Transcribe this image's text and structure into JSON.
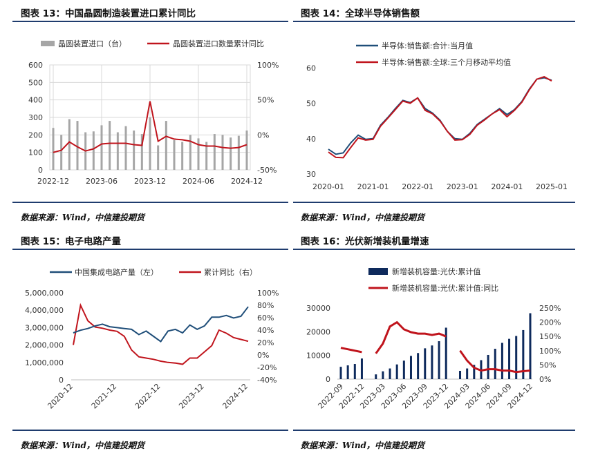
{
  "panels": [
    {
      "title": "图表 13：中国晶圆制造装置进口累计同比",
      "source": "数据来源：Wind，中信建投期货"
    },
    {
      "title": "图表 14：全球半导体销售额",
      "source": "数据来源：Wind，中信建投期货"
    },
    {
      "title": "图表 15：电子电路产量",
      "source": "数据来源：Wind，中信建投期货"
    },
    {
      "title": "图表 16：光伏新增装机量增速",
      "source": "数据来源：Wind，中信建投期货"
    }
  ],
  "colors": {
    "gray_bar": "#a6a6a6",
    "red": "#c0141c",
    "navy": "#1f4e79",
    "dark_navy": "#0e2a5c"
  },
  "chart_data": [
    {
      "type": "bar",
      "legend_position": "top",
      "x_ticks": [
        "2022-12",
        "2023-06",
        "2023-12",
        "2024-06",
        "2024-12"
      ],
      "y_left_ticks": [
        "600",
        "500",
        "400",
        "300",
        "200",
        "100",
        "0"
      ],
      "y_right_ticks": [
        "100%",
        "50%",
        "0%",
        "-50%"
      ],
      "y_left_range": [
        0,
        600
      ],
      "y_right_range": [
        -50,
        100
      ],
      "grid": true,
      "x": [
        "2022-12",
        "2023-01",
        "2023-02",
        "2023-03",
        "2023-04",
        "2023-05",
        "2023-06",
        "2023-07",
        "2023-08",
        "2023-09",
        "2023-10",
        "2023-11",
        "2023-12",
        "2024-01",
        "2024-02",
        "2024-03",
        "2024-04",
        "2024-05",
        "2024-06",
        "2024-07",
        "2024-08",
        "2024-09",
        "2024-10",
        "2024-11",
        "2024-12"
      ],
      "series": [
        {
          "name": "晶圆装置进口（台）",
          "kind": "bar",
          "axis": "left",
          "values": [
            240,
            200,
            290,
            280,
            215,
            220,
            255,
            280,
            215,
            250,
            225,
            205,
            300,
            140,
            280,
            170,
            160,
            200,
            180,
            160,
            205,
            200,
            185,
            195,
            225
          ]
        },
        {
          "name": "晶圆装置进口数量累计同比",
          "kind": "line",
          "axis": "right",
          "values": [
            -25,
            -22,
            -10,
            -17,
            -23,
            -20,
            -13,
            -12,
            -12,
            -12,
            -14,
            -15,
            48,
            -9,
            -2,
            -6,
            -7,
            -9,
            -14,
            -16,
            -16,
            -18,
            -19,
            -18,
            -14
          ]
        }
      ]
    },
    {
      "type": "line",
      "legend_position": "top-left",
      "x_ticks": [
        "2020-01",
        "2021-01",
        "2022-01",
        "2023-01",
        "2024-01",
        "2025-01"
      ],
      "y_ticks": [
        "60",
        "50",
        "40",
        "30"
      ],
      "y_range": [
        30,
        62
      ],
      "grid": false,
      "x": [
        "2020-01",
        "2020-03",
        "2020-05",
        "2020-07",
        "2020-09",
        "2020-11",
        "2021-01",
        "2021-03",
        "2021-05",
        "2021-07",
        "2021-09",
        "2021-11",
        "2022-01",
        "2022-03",
        "2022-05",
        "2022-07",
        "2022-09",
        "2022-11",
        "2023-01",
        "2023-03",
        "2023-05",
        "2023-07",
        "2023-09",
        "2023-11",
        "2024-01",
        "2024-03",
        "2024-05",
        "2024-07",
        "2024-09",
        "2024-11",
        "2025-01"
      ],
      "series": [
        {
          "name": "半导体:销售额:合计:当月值",
          "values": [
            37.0,
            35.6,
            36.0,
            38.8,
            41.0,
            39.8,
            40.0,
            43.8,
            46.0,
            48.5,
            50.8,
            50.2,
            51.5,
            48.5,
            47.2,
            45.2,
            42.0,
            40.0,
            39.8,
            41.5,
            44.0,
            45.5,
            47.0,
            48.5,
            46.8,
            48.2,
            50.5,
            54.0,
            56.8,
            57.2,
            56.5
          ]
        },
        {
          "name": "半导体:销售额:全球:三个月移动平均值",
          "values": [
            36.2,
            34.7,
            34.6,
            37.5,
            40.2,
            39.6,
            39.8,
            43.5,
            45.8,
            48.2,
            50.6,
            50.0,
            51.5,
            48.0,
            47.0,
            45.0,
            42.0,
            39.6,
            39.7,
            41.2,
            43.8,
            45.3,
            47.0,
            48.2,
            46.2,
            48.0,
            50.3,
            53.8,
            56.8,
            57.5,
            56.3
          ]
        }
      ]
    },
    {
      "type": "line",
      "legend_position": "top",
      "x_ticks": [
        "2020-12",
        "2021-12",
        "2022-12",
        "2023-12",
        "2024-12"
      ],
      "y_left_ticks": [
        "5,000,000",
        "4,000,000",
        "3,000,000",
        "2,000,000",
        "1,000,000",
        "0"
      ],
      "y_right_ticks": [
        "100%",
        "80%",
        "60%",
        "40%",
        "20%",
        "0%",
        "-20%",
        "-40%"
      ],
      "y_left_range": [
        0,
        5000000
      ],
      "y_right_range": [
        -40,
        100
      ],
      "grid": false,
      "x": [
        "2020-12",
        "2021-02",
        "2021-04",
        "2021-06",
        "2021-08",
        "2021-10",
        "2021-12",
        "2022-02",
        "2022-04",
        "2022-06",
        "2022-08",
        "2022-10",
        "2022-12",
        "2023-02",
        "2023-04",
        "2023-06",
        "2023-08",
        "2023-10",
        "2023-12",
        "2024-02",
        "2024-04",
        "2024-06",
        "2024-08",
        "2024-10",
        "2024-12"
      ],
      "series": [
        {
          "name": "中国集成电路产量（左）",
          "axis": "left",
          "values": [
            2700000,
            2850000,
            2950000,
            3100000,
            3200000,
            3050000,
            3000000,
            2950000,
            2900000,
            2600000,
            2800000,
            2500000,
            2200000,
            2800000,
            2900000,
            2700000,
            3150000,
            2900000,
            3100000,
            3600000,
            3600000,
            3700000,
            3550000,
            3650000,
            4200000
          ]
        },
        {
          "name": "累计同比（右）",
          "axis": "right",
          "values": [
            16,
            80,
            55,
            45,
            43,
            40,
            38,
            30,
            8,
            -3,
            -5,
            -7,
            -10,
            -12,
            -13,
            -15,
            -5,
            -5,
            5,
            15,
            40,
            35,
            28,
            25,
            22
          ]
        }
      ]
    },
    {
      "type": "bar",
      "legend_position": "top",
      "x_ticks": [
        "2022-09",
        "2022-12",
        "2023-03",
        "2023-06",
        "2023-09",
        "2023-12",
        "2024-03",
        "2024-06",
        "2024-09",
        "2024-12"
      ],
      "y_left_ticks": [
        "30000",
        "20000",
        "10000",
        "0"
      ],
      "y_right_ticks": [
        "250%",
        "200%",
        "150%",
        "100%",
        "50%",
        "0%"
      ],
      "y_left_range": [
        0,
        30000
      ],
      "y_right_range": [
        0,
        250
      ],
      "grid": false,
      "x": [
        "2022-09",
        "2022-10",
        "2022-11",
        "2022-12",
        "2023-01",
        "2023-02",
        "2023-03",
        "2023-04",
        "2023-05",
        "2023-06",
        "2023-07",
        "2023-08",
        "2023-09",
        "2023-10",
        "2023-11",
        "2023-12",
        "2024-01",
        "2024-02",
        "2024-03",
        "2024-04",
        "2024-05",
        "2024-06",
        "2024-07",
        "2024-08",
        "2024-09",
        "2024-10",
        "2024-11",
        "2024-12"
      ],
      "series": [
        {
          "name": "新增装机容量:光伏:累计值",
          "kind": "bar",
          "axis": "left",
          "values": [
            5200,
            5800,
            6400,
            8700,
            null,
            2000,
            3300,
            4500,
            6200,
            7800,
            9800,
            11000,
            13000,
            14200,
            16000,
            21700,
            null,
            3500,
            4500,
            6000,
            8000,
            10200,
            12800,
            15300,
            17000,
            18200,
            20700,
            27800
          ]
        },
        {
          "name": "新增装机容量:光伏:累计值:同比",
          "kind": "line",
          "axis": "right",
          "values": [
            110,
            105,
            100,
            95,
            null,
            90,
            125,
            185,
            200,
            175,
            165,
            160,
            160,
            155,
            160,
            150,
            null,
            100,
            65,
            40,
            30,
            35,
            35,
            30,
            30,
            25,
            28,
            30
          ]
        }
      ]
    }
  ]
}
